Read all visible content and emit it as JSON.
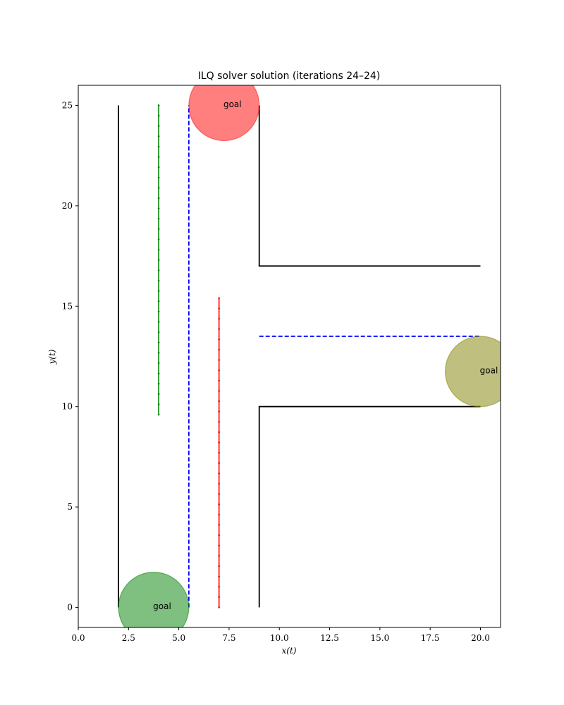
{
  "chart_data": {
    "type": "line",
    "title": "ILQ solver solution (iterations 24–24)",
    "xlabel": "x(t)",
    "ylabel": "y(t)",
    "xlim": [
      0,
      21
    ],
    "ylim": [
      -1,
      26
    ],
    "xticks": [
      0,
      2.5,
      5,
      7.5,
      10,
      12.5,
      15,
      17.5,
      20
    ],
    "xtick_labels": [
      "0.0",
      "2.5",
      "5.0",
      "7.5",
      "10.0",
      "12.5",
      "15.0",
      "17.5",
      "20.0"
    ],
    "yticks": [
      0,
      5,
      10,
      15,
      20,
      25
    ],
    "ytick_labels": [
      "0",
      "5",
      "10",
      "15",
      "20",
      "25"
    ],
    "grid": false,
    "walls": [
      {
        "color": "#000000",
        "points": [
          [
            2,
            0
          ],
          [
            2,
            25
          ]
        ]
      },
      {
        "color": "#000000",
        "points": [
          [
            9,
            25
          ],
          [
            9,
            17
          ],
          [
            20,
            17
          ]
        ]
      },
      {
        "color": "#000000",
        "points": [
          [
            9,
            0
          ],
          [
            9,
            10
          ],
          [
            20,
            10
          ]
        ]
      }
    ],
    "lane_lines": [
      {
        "color": "#0000ff",
        "points": [
          [
            5.5,
            0
          ],
          [
            5.5,
            25
          ]
        ]
      },
      {
        "color": "#0000ff",
        "points": [
          [
            9,
            13.5
          ],
          [
            20,
            13.5
          ]
        ]
      }
    ],
    "trajectories": [
      {
        "color": "#008000",
        "x": 4.0,
        "y_start": 25.0,
        "y_end": 9.6,
        "n_points": 31
      },
      {
        "color": "#ff0000",
        "x": 7.0,
        "y_start": 0.0,
        "y_end": 15.4,
        "n_points": 31
      }
    ],
    "goals": [
      {
        "label": "goal",
        "cx": 7.25,
        "cy": 25.0,
        "r": 1.75,
        "color": "#ff0000",
        "alpha": 0.5
      },
      {
        "label": "goal",
        "cx": 20.0,
        "cy": 11.75,
        "r": 1.75,
        "color": "#808000",
        "alpha": 0.5
      },
      {
        "label": "goal",
        "cx": 3.75,
        "cy": 0.0,
        "r": 1.75,
        "color": "#008000",
        "alpha": 0.5
      }
    ]
  }
}
